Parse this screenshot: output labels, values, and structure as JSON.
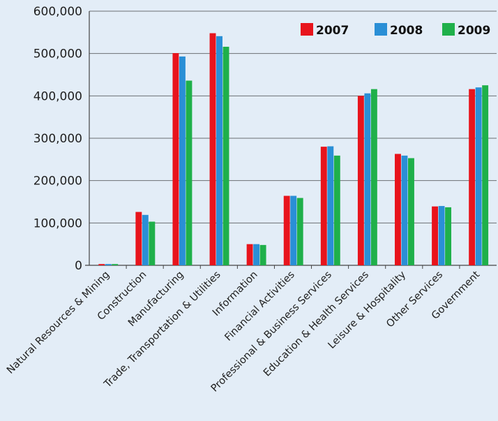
{
  "chart_data": {
    "type": "bar",
    "title": "",
    "xlabel": "",
    "ylabel": "",
    "ylim": [
      0,
      600000
    ],
    "yticks": [
      0,
      100000,
      200000,
      300000,
      400000,
      500000,
      600000
    ],
    "ytick_labels": [
      "0",
      "100,000",
      "200,000",
      "300,000",
      "400,000",
      "500,000",
      "600,000"
    ],
    "grid": "horizontal",
    "legend_position": "top-right",
    "categories": [
      "Natural Resources & Mining",
      "Construction",
      "Manufacturing",
      "Trade, Transportation & Utilities",
      "Information",
      "Financial Activities",
      "Professional & Business Services",
      "Education & Health Services",
      "Leisure & Hospitality",
      "Other Services",
      "Government"
    ],
    "series": [
      {
        "name": "2007",
        "color": "#e8141c",
        "values": [
          3000,
          126000,
          501000,
          548000,
          50000,
          164000,
          280000,
          400000,
          263000,
          139000,
          416000
        ]
      },
      {
        "name": "2008",
        "color": "#2a8fd6",
        "values": [
          3000,
          119000,
          493000,
          541000,
          50000,
          164000,
          281000,
          406000,
          259000,
          140000,
          420000
        ]
      },
      {
        "name": "2009",
        "color": "#1fb04a",
        "values": [
          3000,
          103000,
          436000,
          516000,
          48000,
          159000,
          259000,
          416000,
          253000,
          137000,
          425000
        ]
      }
    ]
  }
}
